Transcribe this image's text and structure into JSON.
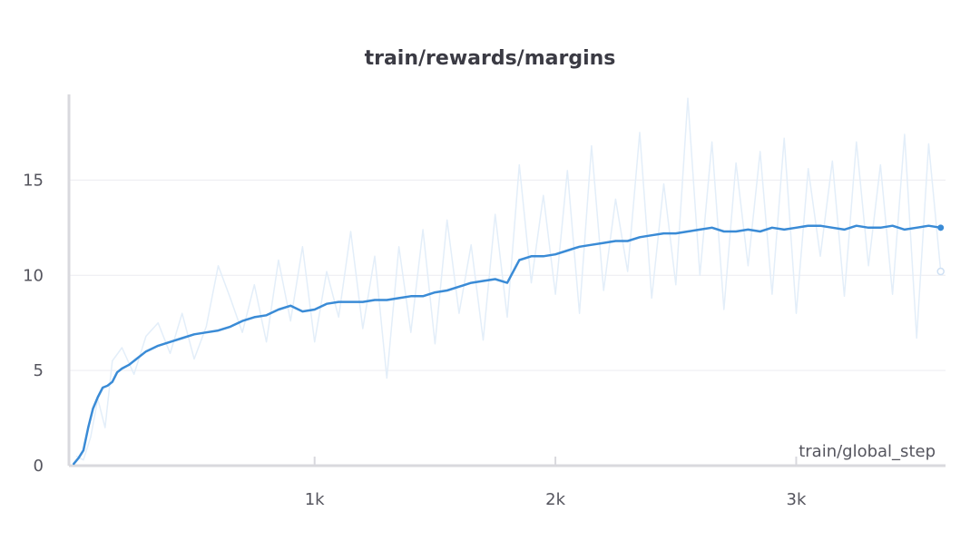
{
  "chart_data": {
    "type": "line",
    "title": "train/rewards/margins",
    "xlabel": "train/global_step",
    "ylabel": "",
    "xlim": [
      -20,
      3620
    ],
    "ylim": [
      0,
      19.5
    ],
    "x_ticks": [
      1000,
      2000,
      3000
    ],
    "x_tick_labels": [
      "1k",
      "2k",
      "3k"
    ],
    "y_ticks": [
      0,
      5,
      10,
      15
    ],
    "y_tick_labels": [
      "0",
      "5",
      "10",
      "15"
    ],
    "grid": "horizontal",
    "line_color": "#3a8bd6",
    "raw_color": "#e3eef9",
    "series": [
      {
        "role": "smoothed",
        "x": [
          0,
          20,
          40,
          60,
          80,
          100,
          120,
          140,
          160,
          180,
          200,
          230,
          260,
          300,
          350,
          400,
          450,
          500,
          550,
          600,
          650,
          700,
          750,
          800,
          850,
          900,
          950,
          1000,
          1050,
          1100,
          1150,
          1200,
          1250,
          1300,
          1350,
          1400,
          1450,
          1500,
          1550,
          1600,
          1650,
          1700,
          1750,
          1800,
          1850,
          1900,
          1950,
          2000,
          2050,
          2100,
          2150,
          2200,
          2250,
          2300,
          2350,
          2400,
          2450,
          2500,
          2550,
          2600,
          2650,
          2700,
          2750,
          2800,
          2850,
          2900,
          2950,
          3000,
          3050,
          3100,
          3150,
          3200,
          3250,
          3300,
          3350,
          3400,
          3450,
          3500,
          3550,
          3600
        ],
        "y": [
          0.1,
          0.4,
          0.8,
          2.0,
          3.0,
          3.6,
          4.1,
          4.2,
          4.4,
          4.9,
          5.1,
          5.3,
          5.6,
          6.0,
          6.3,
          6.5,
          6.7,
          6.9,
          7.0,
          7.1,
          7.3,
          7.6,
          7.8,
          7.9,
          8.2,
          8.4,
          8.1,
          8.2,
          8.5,
          8.6,
          8.6,
          8.6,
          8.7,
          8.7,
          8.8,
          8.9,
          8.9,
          9.1,
          9.2,
          9.4,
          9.6,
          9.7,
          9.8,
          9.6,
          10.8,
          11.0,
          11.0,
          11.1,
          11.3,
          11.5,
          11.6,
          11.7,
          11.8,
          11.8,
          12.0,
          12.1,
          12.2,
          12.2,
          12.3,
          12.4,
          12.5,
          12.3,
          12.3,
          12.4,
          12.3,
          12.5,
          12.4,
          12.5,
          12.6,
          12.6,
          12.5,
          12.4,
          12.6,
          12.5,
          12.5,
          12.6,
          12.4,
          12.5,
          12.6,
          12.5
        ]
      },
      {
        "role": "raw",
        "x": [
          10,
          40,
          70,
          100,
          130,
          160,
          200,
          250,
          300,
          350,
          400,
          450,
          500,
          550,
          600,
          650,
          700,
          750,
          800,
          850,
          900,
          950,
          1000,
          1050,
          1100,
          1150,
          1200,
          1250,
          1300,
          1350,
          1400,
          1450,
          1500,
          1550,
          1600,
          1650,
          1700,
          1750,
          1800,
          1850,
          1900,
          1950,
          2000,
          2050,
          2100,
          2150,
          2200,
          2250,
          2300,
          2350,
          2400,
          2450,
          2500,
          2550,
          2600,
          2650,
          2700,
          2750,
          2800,
          2850,
          2900,
          2950,
          3000,
          3050,
          3100,
          3150,
          3200,
          3250,
          3300,
          3350,
          3400,
          3450,
          3500,
          3550,
          3600
        ],
        "y": [
          0.5,
          0.3,
          1.5,
          3.5,
          2.0,
          5.5,
          6.2,
          4.8,
          6.8,
          7.5,
          5.9,
          8.0,
          5.6,
          7.3,
          10.5,
          8.8,
          7.0,
          9.5,
          6.5,
          10.8,
          7.6,
          11.5,
          6.5,
          10.2,
          7.8,
          12.3,
          7.2,
          11.0,
          4.6,
          11.5,
          7.0,
          12.4,
          6.4,
          12.9,
          8.0,
          11.6,
          6.6,
          13.2,
          7.8,
          15.8,
          9.6,
          14.2,
          9.0,
          15.5,
          8.0,
          16.8,
          9.2,
          14.0,
          10.2,
          17.5,
          8.8,
          14.8,
          9.5,
          19.3,
          10.0,
          17.0,
          8.2,
          15.9,
          10.5,
          16.5,
          9.0,
          17.2,
          8.0,
          15.6,
          11.0,
          16.0,
          8.9,
          17.0,
          10.5,
          15.8,
          9.0,
          17.4,
          6.7,
          16.9,
          10.2
        ]
      }
    ]
  }
}
